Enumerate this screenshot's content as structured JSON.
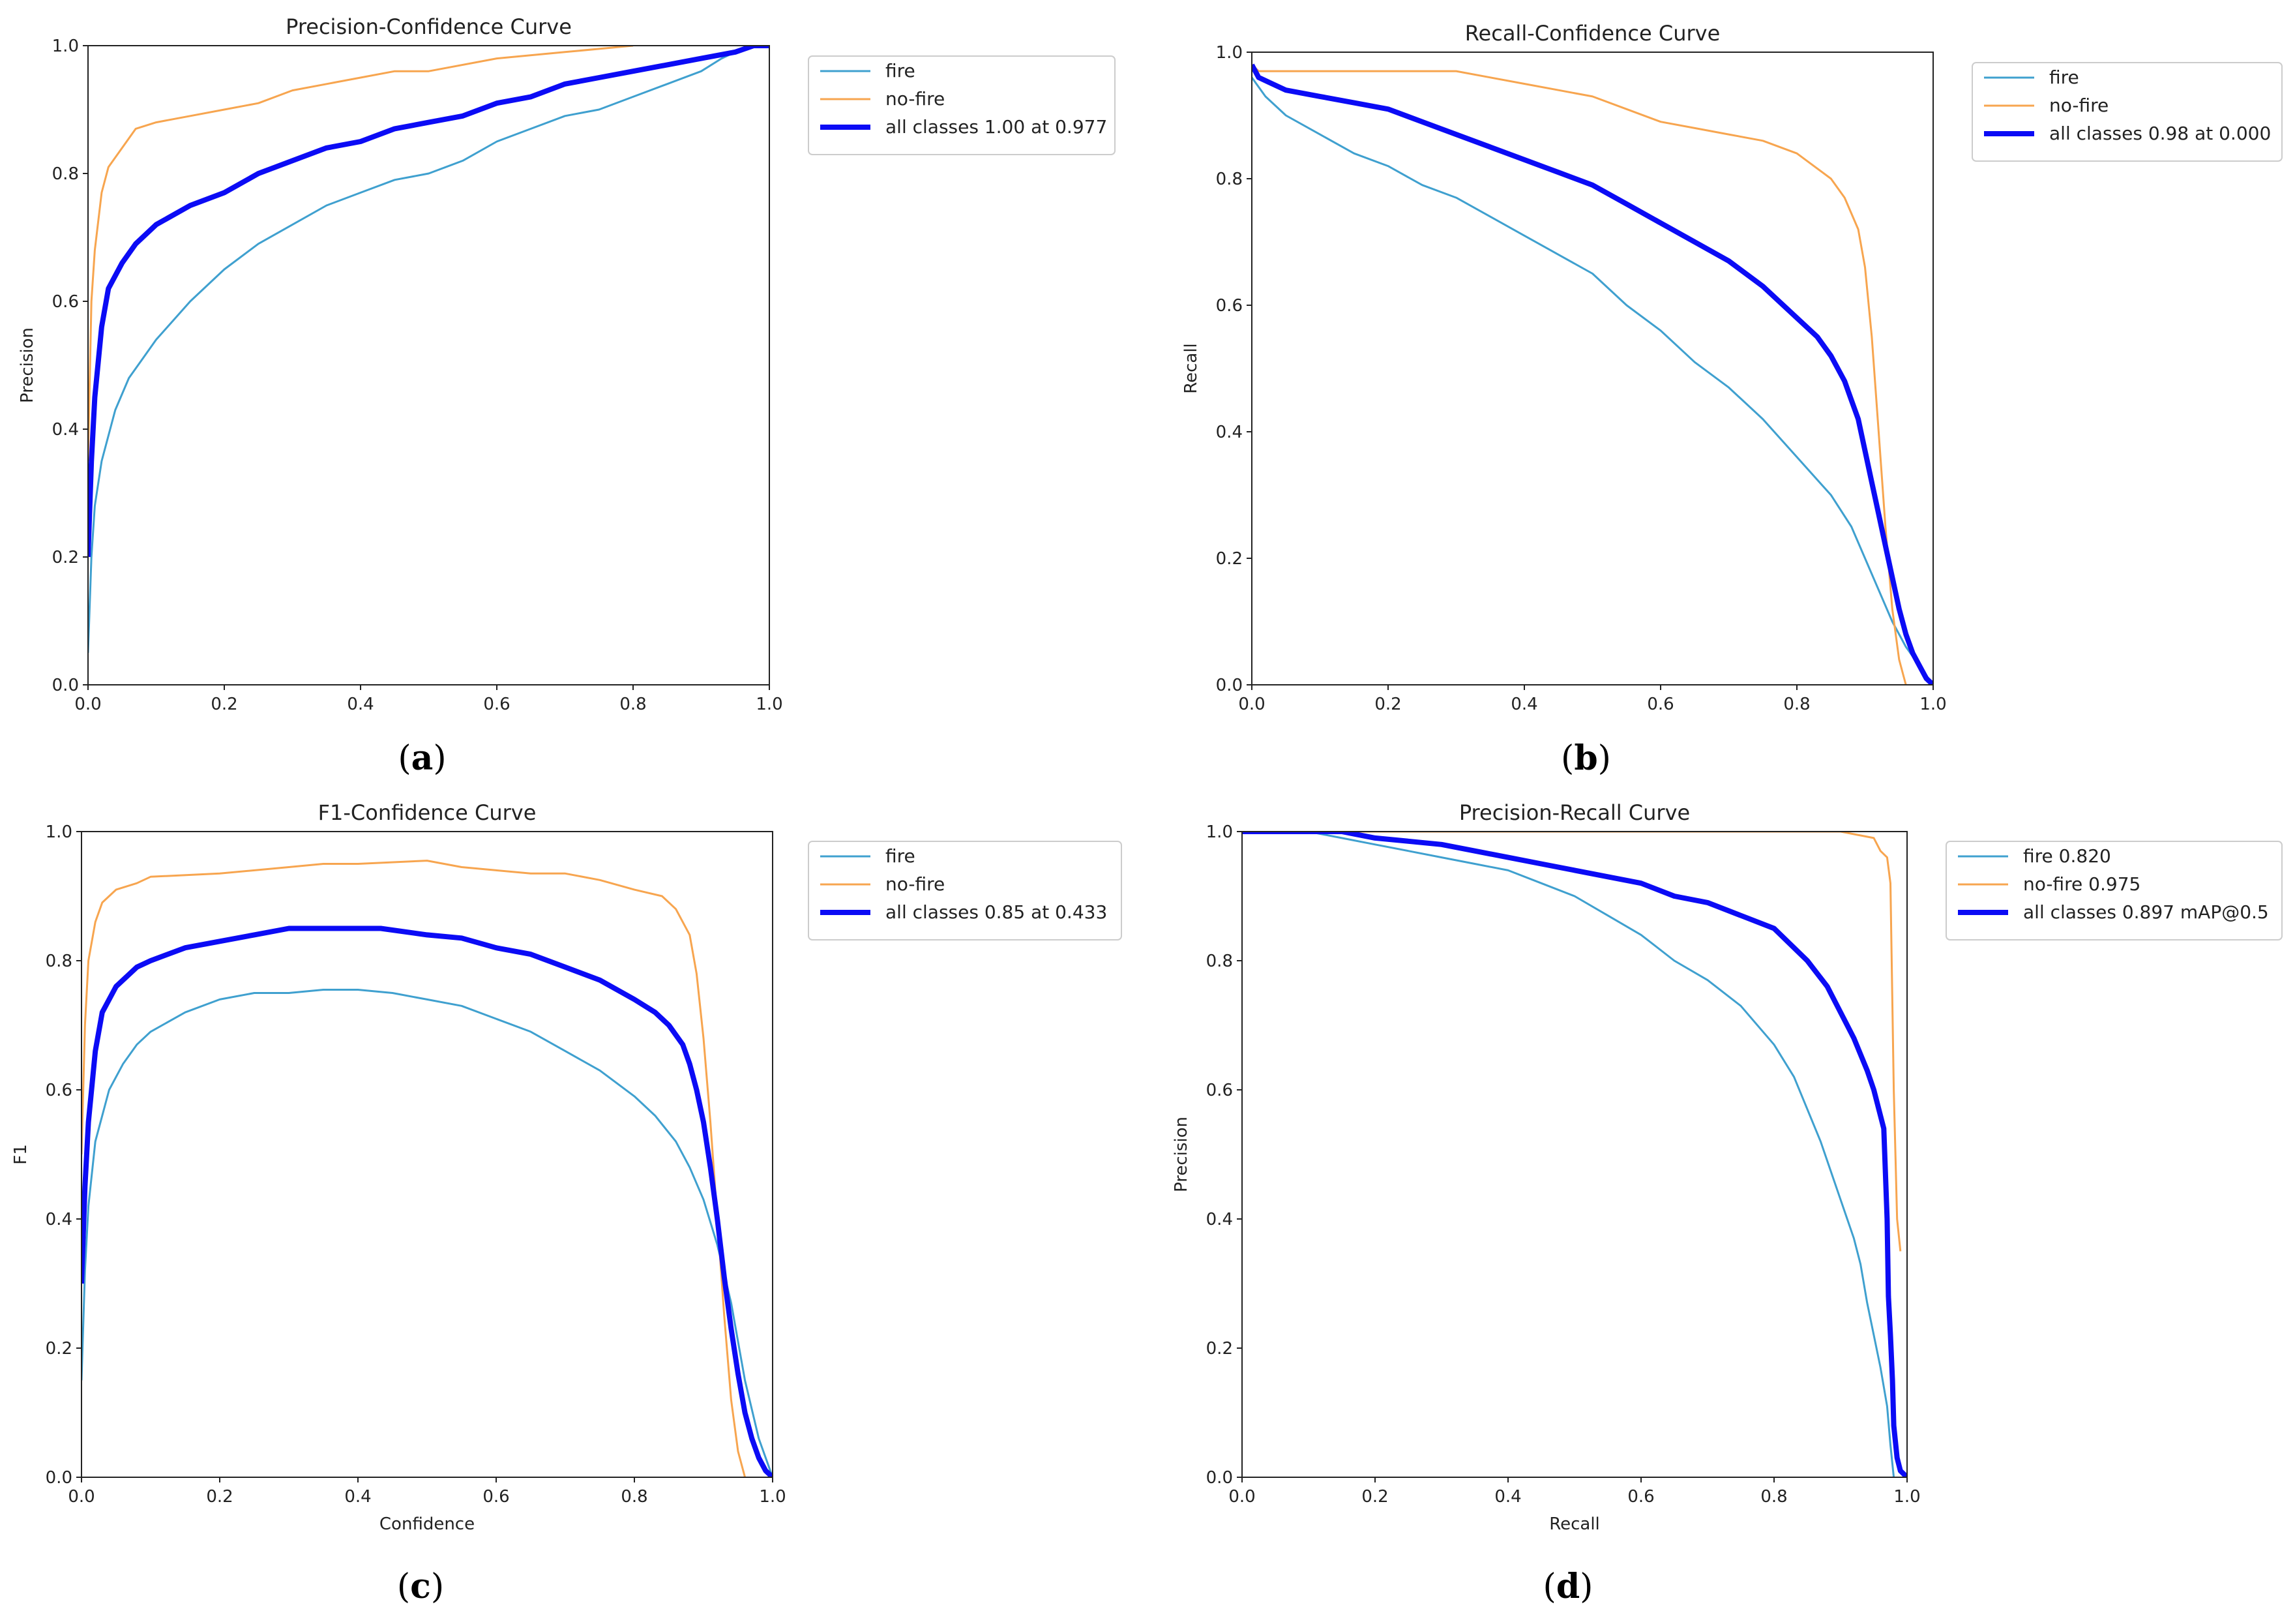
{
  "colors": {
    "fire": "#3fa0cf",
    "no_fire": "#f7a54f",
    "all_classes": "#0b0bf5"
  },
  "chart_data": [
    {
      "id": "a",
      "type": "line",
      "title": "Precision-Confidence Curve",
      "xlabel": "",
      "ylabel": "Precision",
      "xlim": [
        0,
        1
      ],
      "ylim": [
        0,
        1
      ],
      "xticks": [
        "0.0",
        "0.2",
        "0.4",
        "0.6",
        "0.8",
        "1.0"
      ],
      "yticks": [
        "0.0",
        "0.2",
        "0.4",
        "0.6",
        "0.8",
        "1.0"
      ],
      "caption": "a",
      "series": [
        {
          "name": "fire",
          "legend": "fire",
          "x": [
            0.0,
            0.005,
            0.01,
            0.02,
            0.04,
            0.06,
            0.08,
            0.1,
            0.15,
            0.2,
            0.25,
            0.3,
            0.35,
            0.4,
            0.45,
            0.5,
            0.55,
            0.6,
            0.65,
            0.7,
            0.75,
            0.8,
            0.85,
            0.9,
            0.93,
            0.95,
            0.97,
            1.0
          ],
          "y": [
            0.05,
            0.2,
            0.28,
            0.35,
            0.43,
            0.48,
            0.51,
            0.54,
            0.6,
            0.65,
            0.69,
            0.72,
            0.75,
            0.77,
            0.79,
            0.8,
            0.82,
            0.85,
            0.87,
            0.89,
            0.9,
            0.92,
            0.94,
            0.96,
            0.98,
            0.99,
            1.0,
            1.0
          ]
        },
        {
          "name": "no-fire",
          "legend": "no-fire",
          "x": [
            0.0,
            0.005,
            0.01,
            0.02,
            0.03,
            0.05,
            0.07,
            0.1,
            0.15,
            0.2,
            0.25,
            0.3,
            0.35,
            0.4,
            0.45,
            0.5,
            0.6,
            0.7,
            0.8
          ],
          "y": [
            0.35,
            0.6,
            0.68,
            0.77,
            0.81,
            0.84,
            0.87,
            0.88,
            0.89,
            0.9,
            0.91,
            0.93,
            0.94,
            0.95,
            0.96,
            0.96,
            0.98,
            0.99,
            1.0
          ]
        },
        {
          "name": "all classes",
          "legend": "all classes 1.00 at 0.977",
          "x": [
            0.0,
            0.005,
            0.01,
            0.02,
            0.03,
            0.05,
            0.07,
            0.1,
            0.15,
            0.2,
            0.25,
            0.3,
            0.35,
            0.4,
            0.45,
            0.5,
            0.55,
            0.6,
            0.65,
            0.7,
            0.75,
            0.8,
            0.85,
            0.9,
            0.95,
            0.977,
            1.0
          ],
          "y": [
            0.2,
            0.35,
            0.45,
            0.56,
            0.62,
            0.66,
            0.69,
            0.72,
            0.75,
            0.77,
            0.8,
            0.82,
            0.84,
            0.85,
            0.87,
            0.88,
            0.89,
            0.91,
            0.92,
            0.94,
            0.95,
            0.96,
            0.97,
            0.98,
            0.99,
            1.0,
            1.0
          ]
        }
      ]
    },
    {
      "id": "b",
      "type": "line",
      "title": "Recall-Confidence Curve",
      "xlabel": "",
      "ylabel": "Recall",
      "xlim": [
        0,
        1
      ],
      "ylim": [
        0,
        1
      ],
      "xticks": [
        "0.0",
        "0.2",
        "0.4",
        "0.6",
        "0.8",
        "1.0"
      ],
      "yticks": [
        "0.0",
        "0.2",
        "0.4",
        "0.6",
        "0.8",
        "1.0"
      ],
      "caption": "b",
      "series": [
        {
          "name": "fire",
          "legend": "fire",
          "x": [
            0.0,
            0.02,
            0.05,
            0.1,
            0.15,
            0.2,
            0.25,
            0.3,
            0.35,
            0.4,
            0.45,
            0.5,
            0.55,
            0.6,
            0.65,
            0.7,
            0.75,
            0.8,
            0.85,
            0.88,
            0.9,
            0.92,
            0.94,
            0.96,
            0.98,
            1.0
          ],
          "y": [
            0.96,
            0.93,
            0.9,
            0.87,
            0.84,
            0.82,
            0.79,
            0.77,
            0.74,
            0.71,
            0.68,
            0.65,
            0.6,
            0.56,
            0.51,
            0.47,
            0.42,
            0.36,
            0.3,
            0.25,
            0.2,
            0.15,
            0.1,
            0.06,
            0.03,
            0.0
          ]
        },
        {
          "name": "no-fire",
          "legend": "no-fire",
          "x": [
            0.0,
            0.01,
            0.1,
            0.2,
            0.3,
            0.35,
            0.4,
            0.45,
            0.5,
            0.55,
            0.6,
            0.65,
            0.7,
            0.75,
            0.8,
            0.85,
            0.87,
            0.89,
            0.9,
            0.91,
            0.92,
            0.93,
            0.94,
            0.95,
            0.96
          ],
          "y": [
            0.98,
            0.97,
            0.97,
            0.97,
            0.97,
            0.96,
            0.95,
            0.94,
            0.93,
            0.91,
            0.89,
            0.88,
            0.87,
            0.86,
            0.84,
            0.8,
            0.77,
            0.72,
            0.66,
            0.55,
            0.4,
            0.25,
            0.12,
            0.04,
            0.0
          ]
        },
        {
          "name": "all classes",
          "legend": "all classes 0.98 at 0.000",
          "x": [
            0.0,
            0.01,
            0.03,
            0.05,
            0.1,
            0.15,
            0.2,
            0.25,
            0.3,
            0.35,
            0.4,
            0.45,
            0.5,
            0.55,
            0.6,
            0.65,
            0.7,
            0.75,
            0.8,
            0.83,
            0.85,
            0.87,
            0.88,
            0.89,
            0.9,
            0.91,
            0.92,
            0.93,
            0.94,
            0.95,
            0.96,
            0.97,
            0.98,
            0.99,
            1.0
          ],
          "y": [
            0.98,
            0.96,
            0.95,
            0.94,
            0.93,
            0.92,
            0.91,
            0.89,
            0.87,
            0.85,
            0.83,
            0.81,
            0.79,
            0.76,
            0.73,
            0.7,
            0.67,
            0.63,
            0.58,
            0.55,
            0.52,
            0.48,
            0.45,
            0.42,
            0.37,
            0.32,
            0.27,
            0.22,
            0.17,
            0.12,
            0.08,
            0.05,
            0.03,
            0.01,
            0.0
          ]
        }
      ]
    },
    {
      "id": "c",
      "type": "line",
      "title": "F1-Confidence Curve",
      "xlabel": "Confidence",
      "ylabel": "F1",
      "xlim": [
        0,
        1
      ],
      "ylim": [
        0,
        1
      ],
      "xticks": [
        "0.0",
        "0.2",
        "0.4",
        "0.6",
        "0.8",
        "1.0"
      ],
      "yticks": [
        "0.0",
        "0.2",
        "0.4",
        "0.6",
        "0.8",
        "1.0"
      ],
      "caption": "c",
      "series": [
        {
          "name": "fire",
          "legend": "fire",
          "x": [
            0.0,
            0.005,
            0.01,
            0.02,
            0.04,
            0.06,
            0.08,
            0.1,
            0.15,
            0.2,
            0.25,
            0.3,
            0.35,
            0.4,
            0.45,
            0.5,
            0.55,
            0.6,
            0.65,
            0.7,
            0.75,
            0.8,
            0.83,
            0.86,
            0.88,
            0.9,
            0.92,
            0.94,
            0.96,
            0.98,
            1.0
          ],
          "y": [
            0.15,
            0.32,
            0.42,
            0.52,
            0.6,
            0.64,
            0.67,
            0.69,
            0.72,
            0.74,
            0.75,
            0.75,
            0.755,
            0.755,
            0.75,
            0.74,
            0.73,
            0.71,
            0.69,
            0.66,
            0.63,
            0.59,
            0.56,
            0.52,
            0.48,
            0.43,
            0.36,
            0.27,
            0.15,
            0.06,
            0.0
          ]
        },
        {
          "name": "no-fire",
          "legend": "no-fire",
          "x": [
            0.0,
            0.005,
            0.01,
            0.02,
            0.03,
            0.05,
            0.08,
            0.1,
            0.2,
            0.3,
            0.35,
            0.4,
            0.5,
            0.55,
            0.6,
            0.65,
            0.7,
            0.75,
            0.8,
            0.84,
            0.86,
            0.88,
            0.89,
            0.9,
            0.91,
            0.92,
            0.93,
            0.94,
            0.95,
            0.96
          ],
          "y": [
            0.5,
            0.7,
            0.8,
            0.86,
            0.89,
            0.91,
            0.92,
            0.93,
            0.935,
            0.945,
            0.95,
            0.95,
            0.955,
            0.945,
            0.94,
            0.935,
            0.935,
            0.925,
            0.91,
            0.9,
            0.88,
            0.84,
            0.78,
            0.68,
            0.55,
            0.4,
            0.25,
            0.12,
            0.04,
            0.0
          ]
        },
        {
          "name": "all classes",
          "legend": "all classes 0.85 at 0.433",
          "x": [
            0.0,
            0.005,
            0.01,
            0.02,
            0.03,
            0.05,
            0.08,
            0.1,
            0.15,
            0.2,
            0.25,
            0.3,
            0.35,
            0.4,
            0.433,
            0.5,
            0.55,
            0.6,
            0.65,
            0.7,
            0.75,
            0.8,
            0.83,
            0.85,
            0.87,
            0.88,
            0.89,
            0.9,
            0.91,
            0.92,
            0.93,
            0.94,
            0.95,
            0.96,
            0.97,
            0.98,
            0.99,
            1.0
          ],
          "y": [
            0.3,
            0.45,
            0.55,
            0.66,
            0.72,
            0.76,
            0.79,
            0.8,
            0.82,
            0.83,
            0.84,
            0.85,
            0.85,
            0.85,
            0.85,
            0.84,
            0.835,
            0.82,
            0.81,
            0.79,
            0.77,
            0.74,
            0.72,
            0.7,
            0.67,
            0.64,
            0.6,
            0.55,
            0.48,
            0.4,
            0.31,
            0.23,
            0.16,
            0.1,
            0.06,
            0.03,
            0.01,
            0.0
          ]
        }
      ]
    },
    {
      "id": "d",
      "type": "line",
      "title": "Precision-Recall Curve",
      "xlabel": "Recall",
      "ylabel": "Precision",
      "xlim": [
        0,
        1
      ],
      "ylim": [
        0,
        1
      ],
      "xticks": [
        "0.0",
        "0.2",
        "0.4",
        "0.6",
        "0.8",
        "1.0"
      ],
      "yticks": [
        "0.0",
        "0.2",
        "0.4",
        "0.6",
        "0.8",
        "1.0"
      ],
      "caption": "d",
      "series": [
        {
          "name": "fire",
          "legend": "fire 0.820",
          "x": [
            0.0,
            0.1,
            0.15,
            0.2,
            0.25,
            0.3,
            0.35,
            0.4,
            0.45,
            0.5,
            0.55,
            0.6,
            0.65,
            0.7,
            0.75,
            0.8,
            0.83,
            0.85,
            0.87,
            0.89,
            0.9,
            0.91,
            0.92,
            0.93,
            0.94,
            0.95,
            0.96,
            0.97,
            0.975,
            0.98
          ],
          "y": [
            1.0,
            1.0,
            0.99,
            0.98,
            0.97,
            0.96,
            0.95,
            0.94,
            0.92,
            0.9,
            0.87,
            0.84,
            0.8,
            0.77,
            0.73,
            0.67,
            0.62,
            0.57,
            0.52,
            0.46,
            0.43,
            0.4,
            0.37,
            0.33,
            0.27,
            0.22,
            0.17,
            0.11,
            0.05,
            0.0
          ]
        },
        {
          "name": "no-fire",
          "legend": "no-fire 0.975",
          "x": [
            0.0,
            0.5,
            0.9,
            0.95,
            0.96,
            0.97,
            0.975,
            0.98,
            0.985,
            0.99
          ],
          "y": [
            1.0,
            1.0,
            1.0,
            0.99,
            0.97,
            0.96,
            0.92,
            0.6,
            0.4,
            0.35
          ]
        },
        {
          "name": "all classes",
          "legend": "all classes 0.897 mAP@0.5",
          "x": [
            0.0,
            0.1,
            0.15,
            0.2,
            0.25,
            0.3,
            0.35,
            0.4,
            0.45,
            0.5,
            0.55,
            0.6,
            0.65,
            0.7,
            0.75,
            0.8,
            0.85,
            0.88,
            0.9,
            0.92,
            0.94,
            0.95,
            0.96,
            0.965,
            0.97,
            0.972,
            0.975,
            0.978,
            0.98,
            0.985,
            0.99,
            1.0
          ],
          "y": [
            1.0,
            1.0,
            1.0,
            0.99,
            0.985,
            0.98,
            0.97,
            0.96,
            0.95,
            0.94,
            0.93,
            0.92,
            0.9,
            0.89,
            0.87,
            0.85,
            0.8,
            0.76,
            0.72,
            0.68,
            0.63,
            0.6,
            0.56,
            0.54,
            0.4,
            0.28,
            0.22,
            0.15,
            0.08,
            0.03,
            0.01,
            0.0
          ]
        }
      ]
    }
  ]
}
